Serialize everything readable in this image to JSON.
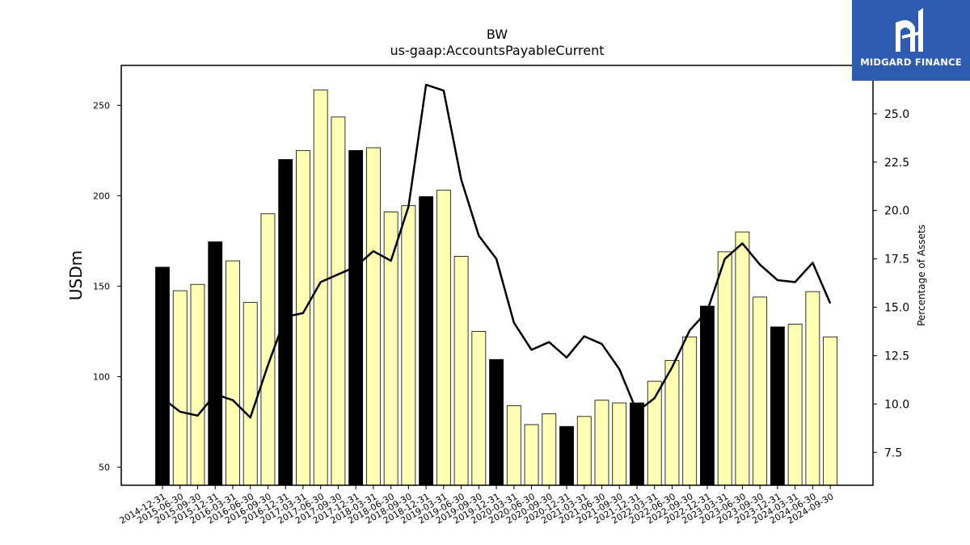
{
  "header": {
    "title": "BW",
    "subtitle": "us-gaap:AccountsPayableCurrent"
  },
  "logo": {
    "text": "MIDGARD FINANCE",
    "background": "#2d5bb0"
  },
  "chart_data": {
    "type": "bar",
    "title": "BW",
    "subtitle": "us-gaap:AccountsPayableCurrent",
    "ylabel": "USDm",
    "y2label": "Percentage of Assets",
    "ylim": [
      40,
      272
    ],
    "y2lim": [
      5.8,
      27.5
    ],
    "yticks": [
      50,
      100,
      150,
      200,
      250
    ],
    "y2ticks": [
      "7.5",
      "10.0",
      "12.5",
      "15.0",
      "17.5",
      "20.0",
      "22.5",
      "25.0"
    ],
    "categories": [
      "2014-12-31",
      "2015-06-30",
      "2015-09-30",
      "2015-12-31",
      "2016-03-31",
      "2016-06-30",
      "2016-09-30",
      "2016-12-31",
      "2017-03-31",
      "2017-06-30",
      "2017-09-30",
      "2017-12-31",
      "2018-03-31",
      "2018-06-30",
      "2018-09-30",
      "2018-12-31",
      "2019-03-31",
      "2019-06-30",
      "2019-09-30",
      "2019-12-31",
      "2020-03-31",
      "2020-06-30",
      "2020-09-30",
      "2020-12-31",
      "2021-03-31",
      "2021-06-30",
      "2021-09-30",
      "2021-12-31",
      "2022-03-31",
      "2022-06-30",
      "2022-09-30",
      "2022-12-31",
      "2023-03-31",
      "2023-06-30",
      "2023-09-30",
      "2023-12-31",
      "2024-03-31",
      "2024-06-30",
      "2024-09-30"
    ],
    "series": [
      {
        "kind": "bar",
        "values": [
          160.5,
          147.5,
          151,
          174.5,
          164,
          141,
          190,
          220,
          225,
          258.5,
          243.5,
          225,
          226.5,
          191,
          194.5,
          199.5,
          203,
          166.5,
          125,
          109.5,
          84,
          73.5,
          79.5,
          72.5,
          78,
          87,
          85.5,
          85.5,
          97.5,
          109,
          122,
          139,
          169,
          180,
          144,
          127.5,
          129,
          147,
          122
        ],
        "year_end_color": "#000000",
        "quarter_color": "#ffffb3"
      },
      {
        "kind": "line",
        "axis": "right",
        "color": "#000000",
        "values": [
          10.3,
          9.6,
          9.4,
          10.5,
          10.2,
          9.3,
          12.0,
          14.5,
          14.7,
          16.3,
          16.7,
          17.1,
          17.9,
          17.4,
          20.2,
          26.5,
          26.2,
          21.6,
          18.7,
          17.5,
          14.2,
          12.8,
          13.2,
          12.4,
          13.5,
          13.1,
          11.8,
          9.6,
          10.3,
          11.9,
          13.8,
          14.8,
          17.5,
          18.3,
          17.2,
          16.4,
          16.3,
          17.3,
          15.2
        ]
      }
    ],
    "year_end_flags": [
      true,
      false,
      false,
      true,
      false,
      false,
      false,
      true,
      false,
      false,
      false,
      true,
      false,
      false,
      false,
      true,
      false,
      false,
      false,
      true,
      false,
      false,
      false,
      true,
      false,
      false,
      false,
      true,
      false,
      false,
      false,
      true,
      false,
      false,
      false,
      true,
      false,
      false,
      false
    ]
  }
}
